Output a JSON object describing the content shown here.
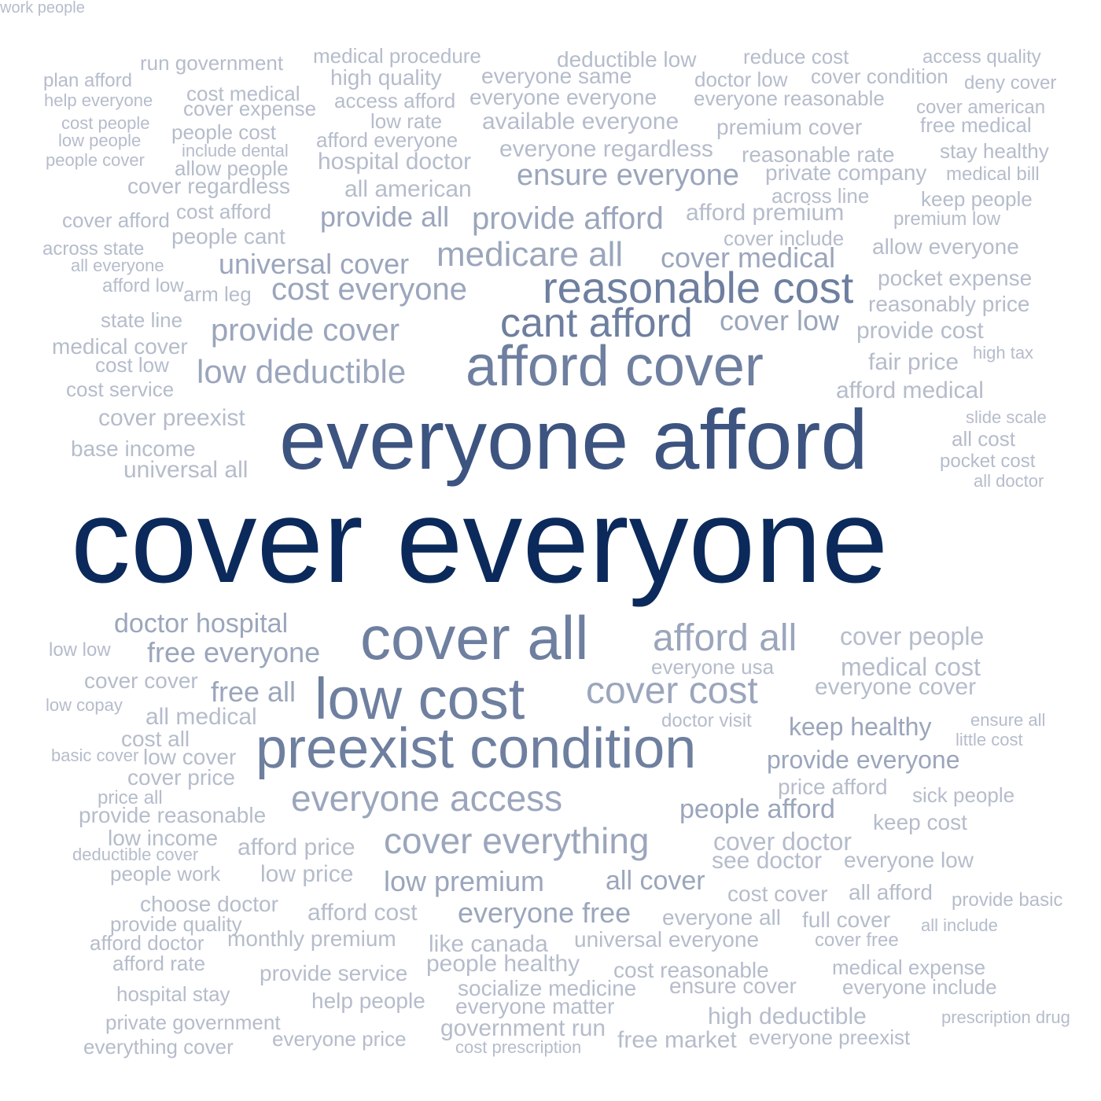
{
  "palette": {
    "t1": "#0b2a5b",
    "t2": "#3d5480",
    "t3": "#6e7f9f",
    "t4": "#9ba6bc",
    "t5": "#b5bccb"
  },
  "words": [
    {
      "text": "cover everyone",
      "tier": 1
    },
    {
      "text": "everyone afford",
      "tier": 2
    },
    {
      "text": "afford cover",
      "tier": 3
    },
    {
      "text": "cover all",
      "tier": 3
    },
    {
      "text": "low cost",
      "tier": 3
    },
    {
      "text": "preexist condition",
      "tier": 3
    },
    {
      "text": "reasonable cost",
      "tier": 3
    },
    {
      "text": "cant afford",
      "tier": 3
    },
    {
      "text": "medicare all",
      "tier": 4
    },
    {
      "text": "afford all",
      "tier": 4
    },
    {
      "text": "cover cost",
      "tier": 4
    },
    {
      "text": "everyone access",
      "tier": 4
    },
    {
      "text": "cover everything",
      "tier": 4
    },
    {
      "text": "low deductible",
      "tier": 4
    },
    {
      "text": "cost everyone",
      "tier": 4
    },
    {
      "text": "provide afford",
      "tier": 4
    },
    {
      "text": "provide all",
      "tier": 4
    },
    {
      "text": "provide cover",
      "tier": 4
    },
    {
      "text": "cover medical",
      "tier": 4
    },
    {
      "text": "universal cover",
      "tier": 4
    },
    {
      "text": "ensure everyone",
      "tier": 4
    },
    {
      "text": "cover low",
      "tier": 4
    },
    {
      "text": "free everyone",
      "tier": 4
    },
    {
      "text": "free all",
      "tier": 4
    },
    {
      "text": "doctor hospital",
      "tier": 4
    },
    {
      "text": "people afford",
      "tier": 4
    },
    {
      "text": "provide everyone",
      "tier": 4
    },
    {
      "text": "keep healthy",
      "tier": 4
    },
    {
      "text": "low premium",
      "tier": 4
    },
    {
      "text": "all cover",
      "tier": 4
    },
    {
      "text": "everyone free",
      "tier": 4
    },
    {
      "text": "all medical",
      "tier": 5
    },
    {
      "text": "universal all",
      "tier": 5
    },
    {
      "text": "hospital doctor",
      "tier": 5
    },
    {
      "text": "all american",
      "tier": 5
    },
    {
      "text": "everyone regardless",
      "tier": 5
    },
    {
      "text": "available everyone",
      "tier": 5
    },
    {
      "text": "high quality",
      "tier": 5
    },
    {
      "text": "everyone same",
      "tier": 5
    },
    {
      "text": "everyone everyone",
      "tier": 5
    },
    {
      "text": "deductible low",
      "tier": 5
    },
    {
      "text": "afford premium",
      "tier": 5
    },
    {
      "text": "premium cover",
      "tier": 5
    },
    {
      "text": "reasonable rate",
      "tier": 5
    },
    {
      "text": "private company",
      "tier": 5
    },
    {
      "text": "cover regardless",
      "tier": 5
    },
    {
      "text": "cover preexist",
      "tier": 5
    },
    {
      "text": "afford medical",
      "tier": 5
    },
    {
      "text": "fair price",
      "tier": 5
    },
    {
      "text": "provide cost",
      "tier": 5
    },
    {
      "text": "reasonably price",
      "tier": 5
    },
    {
      "text": "pocket expense",
      "tier": 5
    },
    {
      "text": "allow everyone",
      "tier": 5
    },
    {
      "text": "cover people",
      "tier": 5
    },
    {
      "text": "medical cost",
      "tier": 5
    },
    {
      "text": "everyone cover",
      "tier": 5
    },
    {
      "text": "cover doctor",
      "tier": 5
    },
    {
      "text": "see doctor",
      "tier": 5
    },
    {
      "text": "everyone low",
      "tier": 5
    },
    {
      "text": "keep cost",
      "tier": 5
    },
    {
      "text": "price afford",
      "tier": 5
    },
    {
      "text": "afford price",
      "tier": 5
    },
    {
      "text": "low price",
      "tier": 5
    },
    {
      "text": "afford cost",
      "tier": 5
    },
    {
      "text": "like canada",
      "tier": 5
    },
    {
      "text": "universal everyone",
      "tier": 5
    },
    {
      "text": "everyone all",
      "tier": 5
    },
    {
      "text": "cost cover",
      "tier": 5
    },
    {
      "text": "all afford",
      "tier": 5
    },
    {
      "text": "full cover",
      "tier": 5
    },
    {
      "text": "people healthy",
      "tier": 5
    },
    {
      "text": "cost reasonable",
      "tier": 5
    },
    {
      "text": "ensure cover",
      "tier": 5
    },
    {
      "text": "socialize medicine",
      "tier": 5
    },
    {
      "text": "everyone matter",
      "tier": 5
    },
    {
      "text": "high deductible",
      "tier": 5
    },
    {
      "text": "government run",
      "tier": 5
    },
    {
      "text": "free market",
      "tier": 5
    },
    {
      "text": "everyone preexist",
      "tier": 5
    },
    {
      "text": "monthly premium",
      "tier": 5
    },
    {
      "text": "provide service",
      "tier": 5
    },
    {
      "text": "help people",
      "tier": 5
    },
    {
      "text": "choose doctor",
      "tier": 5
    },
    {
      "text": "low income",
      "tier": 5
    },
    {
      "text": "people work",
      "tier": 5
    },
    {
      "text": "low cover",
      "tier": 5
    },
    {
      "text": "cover price",
      "tier": 5
    },
    {
      "text": "cost all",
      "tier": 5
    },
    {
      "text": "cover cover",
      "tier": 5
    },
    {
      "text": "provide reasonable",
      "tier": 5
    },
    {
      "text": "base income",
      "tier": 5
    },
    {
      "text": "cost service",
      "tier": 5
    },
    {
      "text": "cost low",
      "tier": 5
    },
    {
      "text": "medical cover",
      "tier": 5
    },
    {
      "text": "state line",
      "tier": 5
    },
    {
      "text": "people cant",
      "tier": 5
    },
    {
      "text": "cost afford",
      "tier": 5
    },
    {
      "text": "people cost",
      "tier": 5
    },
    {
      "text": "low rate",
      "tier": 5
    },
    {
      "text": "access afford",
      "tier": 5
    },
    {
      "text": "afford everyone",
      "tier": 5
    },
    {
      "text": "cover expense",
      "tier": 5
    },
    {
      "text": "cost medical",
      "tier": 5
    },
    {
      "text": "run government",
      "tier": 5
    },
    {
      "text": "medical procedure",
      "tier": 5
    },
    {
      "text": "reduce cost",
      "tier": 5
    },
    {
      "text": "access quality",
      "tier": 5
    },
    {
      "text": "doctor low",
      "tier": 5
    },
    {
      "text": "cover condition",
      "tier": 5
    },
    {
      "text": "deny cover",
      "tier": 5
    },
    {
      "text": "everyone reasonable",
      "tier": 5
    },
    {
      "text": "cover american",
      "tier": 5
    },
    {
      "text": "free medical",
      "tier": 5
    },
    {
      "text": "stay healthy",
      "tier": 5
    },
    {
      "text": "medical bill",
      "tier": 5
    },
    {
      "text": "keep people",
      "tier": 5
    },
    {
      "text": "across line",
      "tier": 5
    },
    {
      "text": "premium low",
      "tier": 5
    },
    {
      "text": "cover include",
      "tier": 5
    },
    {
      "text": "high tax",
      "tier": 5
    },
    {
      "text": "slide scale",
      "tier": 5
    },
    {
      "text": "all cost",
      "tier": 5
    },
    {
      "text": "pocket cost",
      "tier": 5
    },
    {
      "text": "all doctor",
      "tier": 5
    },
    {
      "text": "plan afford",
      "tier": 5
    },
    {
      "text": "help everyone",
      "tier": 5
    },
    {
      "text": "low people",
      "tier": 5
    },
    {
      "text": "cost people",
      "tier": 5
    },
    {
      "text": "people cover",
      "tier": 5
    },
    {
      "text": "include dental",
      "tier": 5
    },
    {
      "text": "allow people",
      "tier": 5
    },
    {
      "text": "cover afford",
      "tier": 5
    },
    {
      "text": "across state",
      "tier": 5
    },
    {
      "text": "all everyone",
      "tier": 5
    },
    {
      "text": "afford low",
      "tier": 5
    },
    {
      "text": "arm leg",
      "tier": 5
    },
    {
      "text": "low low",
      "tier": 5
    },
    {
      "text": "low copay",
      "tier": 5
    },
    {
      "text": "basic cover",
      "tier": 5
    },
    {
      "text": "price all",
      "tier": 5
    },
    {
      "text": "deductible cover",
      "tier": 5
    },
    {
      "text": "provide quality",
      "tier": 5
    },
    {
      "text": "afford doctor",
      "tier": 5
    },
    {
      "text": "afford rate",
      "tier": 5
    },
    {
      "text": "hospital stay",
      "tier": 5
    },
    {
      "text": "private government",
      "tier": 5
    },
    {
      "text": "everything cover",
      "tier": 5
    },
    {
      "text": "everyone price",
      "tier": 5
    },
    {
      "text": "cost prescription",
      "tier": 5
    },
    {
      "text": "everyone usa",
      "tier": 5
    },
    {
      "text": "doctor visit",
      "tier": 5
    },
    {
      "text": "ensure all",
      "tier": 5
    },
    {
      "text": "little cost",
      "tier": 5
    },
    {
      "text": "sick people",
      "tier": 5
    },
    {
      "text": "provide basic",
      "tier": 5
    },
    {
      "text": "all include",
      "tier": 5
    },
    {
      "text": "cover free",
      "tier": 5
    },
    {
      "text": "medical expense",
      "tier": 5
    },
    {
      "text": "everyone include",
      "tier": 5
    },
    {
      "text": "prescription drug",
      "tier": 5
    },
    {
      "text": "work people",
      "tier": 5
    }
  ]
}
